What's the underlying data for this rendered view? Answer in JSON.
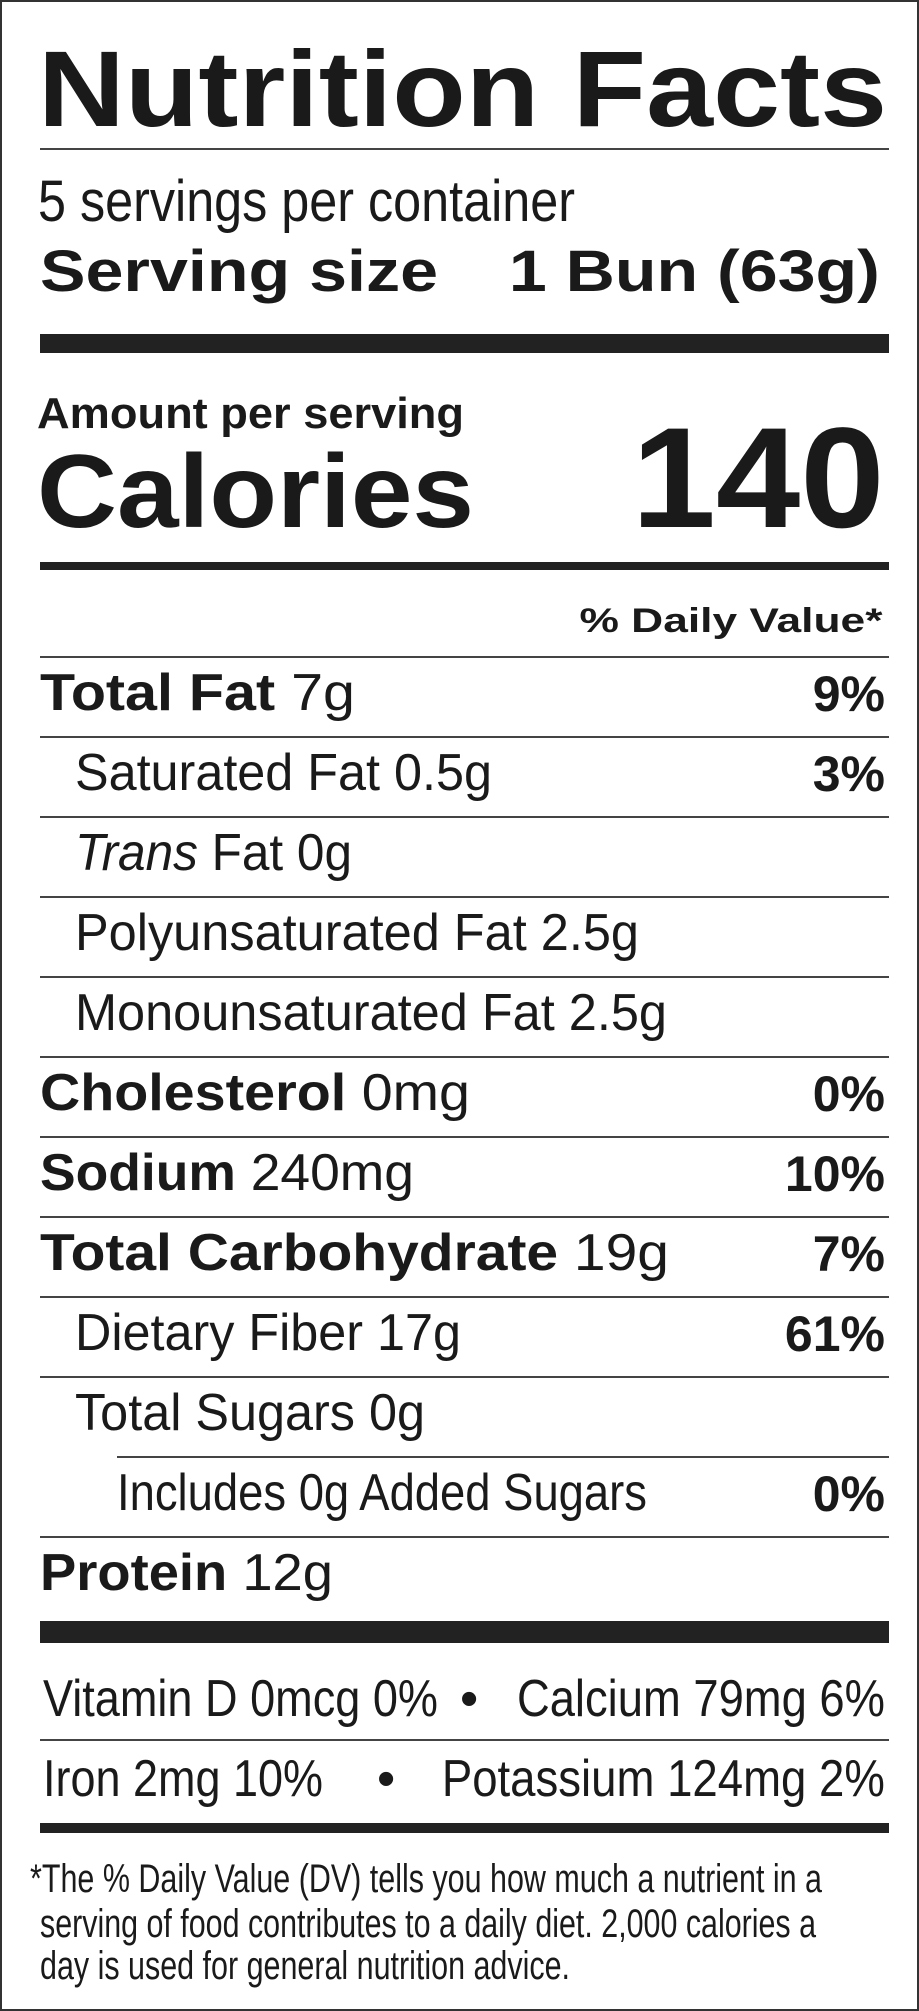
{
  "title": "Nutrition Facts",
  "servings_per_container": "5 servings per container",
  "serving_size": {
    "label": "Serving size",
    "value": "1 Bun (63g)"
  },
  "amount_per_serving": "Amount per serving",
  "calories": {
    "label": "Calories",
    "value": "140"
  },
  "daily_value_header": "% Daily Value*",
  "nutrients": [
    {
      "name": "Total Fat",
      "amount": "7g",
      "dv": "9%"
    },
    {
      "name": "Saturated Fat",
      "amount": "0.5g",
      "dv": "3%"
    },
    {
      "name_italic": "Trans",
      "name": "Fat",
      "amount": "0g"
    },
    {
      "name": "Polyunsaturated Fat",
      "amount": "2.5g"
    },
    {
      "name": "Monounsaturated Fat",
      "amount": "2.5g"
    },
    {
      "name": "Cholesterol",
      "amount": "0mg",
      "dv": "0%"
    },
    {
      "name": "Sodium",
      "amount": "240mg",
      "dv": "10%"
    },
    {
      "name": "Total Carbohydrate",
      "amount": "19g",
      "dv": "7%"
    },
    {
      "name": "Dietary Fiber",
      "amount": "17g",
      "dv": "61%"
    },
    {
      "name": "Total Sugars",
      "amount": "0g"
    },
    {
      "name": "Includes 0g Added Sugars",
      "dv": "0%"
    },
    {
      "name": "Protein",
      "amount": "12g"
    }
  ],
  "vitamins": {
    "vitamin_d": "Vitamin D 0mcg 0%",
    "calcium": "Calcium 79mg 6%",
    "iron": "Iron 2mg 10%",
    "potassium": "Potassium 124mg 2%",
    "separator": "•"
  },
  "footnote": [
    "*The % Daily Value (DV) tells you how much a nutrient in a",
    "serving of food contributes to a daily diet. 2,000 calories a",
    "day is used for general nutrition advice."
  ]
}
